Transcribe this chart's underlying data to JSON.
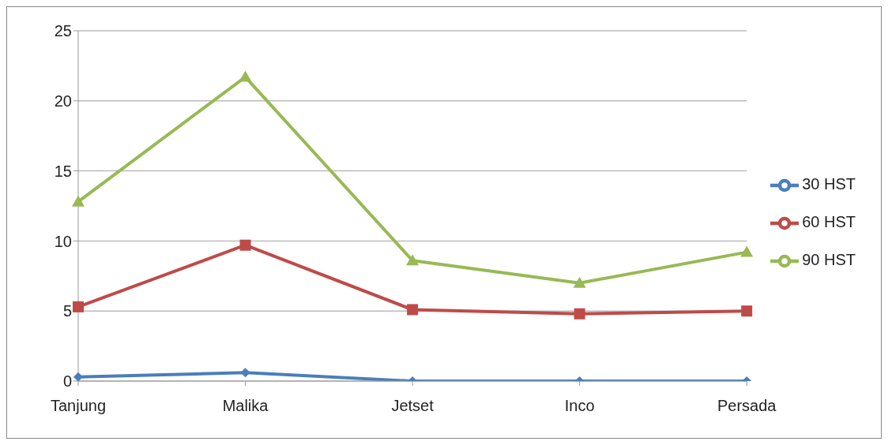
{
  "chart_data": {
    "type": "line",
    "categories": [
      "Tanjung",
      "Malika",
      "Jetset",
      "Inco",
      "Persada"
    ],
    "series": [
      {
        "name": "30 HST",
        "color": "#4a7ebb",
        "marker": "diamond",
        "values": [
          0.3,
          0.6,
          0,
          0,
          0
        ]
      },
      {
        "name": "60 HST",
        "color": "#be4b48",
        "marker": "square",
        "values": [
          5.3,
          9.7,
          5.1,
          4.8,
          5.0
        ]
      },
      {
        "name": "90 HST",
        "color": "#98b954",
        "marker": "triangle",
        "values": [
          12.8,
          21.7,
          8.6,
          7.0,
          9.2
        ]
      }
    ],
    "ylim": [
      0,
      25
    ],
    "yticks": [
      0,
      5,
      10,
      15,
      20,
      25
    ],
    "grid": "y",
    "legend": "right"
  }
}
